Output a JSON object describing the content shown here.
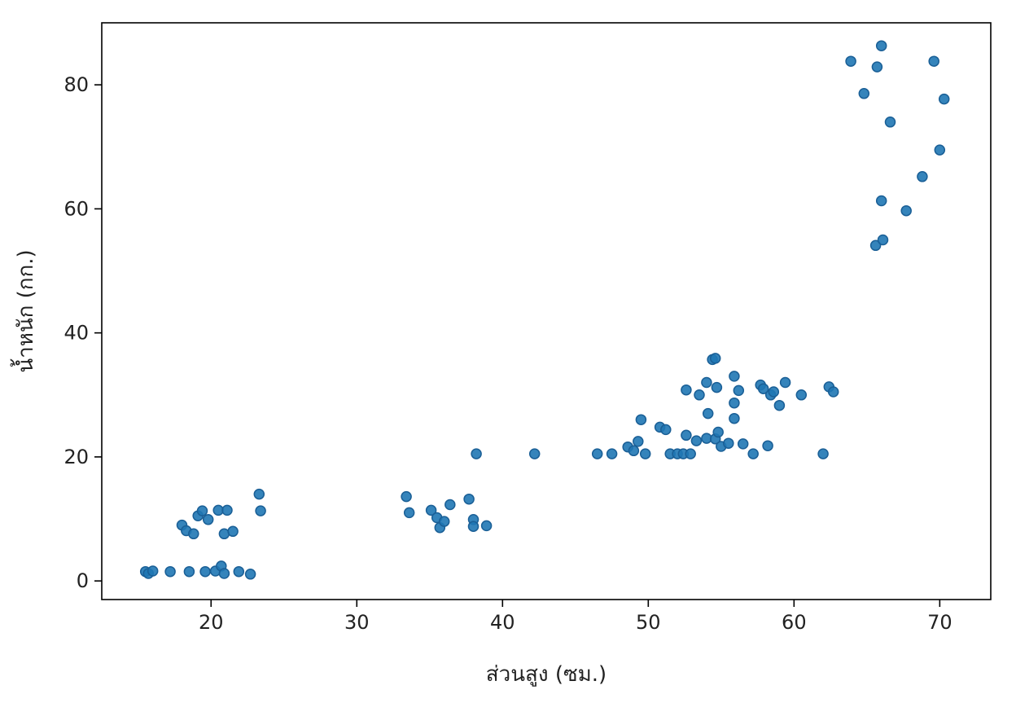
{
  "chart_data": {
    "type": "scatter",
    "title": "",
    "xlabel": "ส่วนสูง (ซม.)",
    "ylabel": "น้ำหนัก (กก.)",
    "xlim": [
      12.5,
      73.5
    ],
    "ylim": [
      -3,
      90
    ],
    "xticks": [
      20,
      30,
      40,
      50,
      60,
      70
    ],
    "yticks": [
      0,
      20,
      40,
      60,
      80
    ],
    "grid": false,
    "legend": "none",
    "marker_color": "#1f77b4",
    "series": [
      {
        "points": [
          {
            "x": 15.5,
            "y": 1.5
          },
          {
            "x": 15.7,
            "y": 1.2
          },
          {
            "x": 16.0,
            "y": 1.6
          },
          {
            "x": 17.2,
            "y": 1.5
          },
          {
            "x": 18.5,
            "y": 1.5
          },
          {
            "x": 19.6,
            "y": 1.5
          },
          {
            "x": 20.3,
            "y": 1.6
          },
          {
            "x": 20.7,
            "y": 2.4
          },
          {
            "x": 20.9,
            "y": 1.2
          },
          {
            "x": 21.9,
            "y": 1.5
          },
          {
            "x": 22.7,
            "y": 1.1
          },
          {
            "x": 18.0,
            "y": 9.0
          },
          {
            "x": 18.3,
            "y": 8.1
          },
          {
            "x": 18.8,
            "y": 7.6
          },
          {
            "x": 19.1,
            "y": 10.5
          },
          {
            "x": 19.4,
            "y": 11.3
          },
          {
            "x": 19.8,
            "y": 9.9
          },
          {
            "x": 20.5,
            "y": 11.4
          },
          {
            "x": 20.9,
            "y": 7.6
          },
          {
            "x": 21.1,
            "y": 11.4
          },
          {
            "x": 21.5,
            "y": 8.0
          },
          {
            "x": 23.3,
            "y": 14.0
          },
          {
            "x": 23.4,
            "y": 11.3
          },
          {
            "x": 33.4,
            "y": 13.6
          },
          {
            "x": 33.6,
            "y": 11.0
          },
          {
            "x": 35.1,
            "y": 11.4
          },
          {
            "x": 35.5,
            "y": 10.2
          },
          {
            "x": 35.7,
            "y": 8.6
          },
          {
            "x": 36.0,
            "y": 9.6
          },
          {
            "x": 36.4,
            "y": 12.3
          },
          {
            "x": 37.7,
            "y": 13.2
          },
          {
            "x": 38.0,
            "y": 9.9
          },
          {
            "x": 38.0,
            "y": 8.8
          },
          {
            "x": 38.9,
            "y": 8.9
          },
          {
            "x": 38.2,
            "y": 20.5
          },
          {
            "x": 42.2,
            "y": 20.5
          },
          {
            "x": 46.5,
            "y": 20.5
          },
          {
            "x": 47.5,
            "y": 20.5
          },
          {
            "x": 48.6,
            "y": 21.6
          },
          {
            "x": 49.0,
            "y": 21.0
          },
          {
            "x": 49.3,
            "y": 22.5
          },
          {
            "x": 49.5,
            "y": 26.0
          },
          {
            "x": 49.8,
            "y": 20.5
          },
          {
            "x": 50.8,
            "y": 24.8
          },
          {
            "x": 51.2,
            "y": 24.4
          },
          {
            "x": 51.5,
            "y": 20.5
          },
          {
            "x": 52.0,
            "y": 20.5
          },
          {
            "x": 52.4,
            "y": 20.5
          },
          {
            "x": 52.6,
            "y": 23.5
          },
          {
            "x": 52.6,
            "y": 30.8
          },
          {
            "x": 52.9,
            "y": 20.5
          },
          {
            "x": 53.3,
            "y": 22.6
          },
          {
            "x": 53.5,
            "y": 30.0
          },
          {
            "x": 54.0,
            "y": 23.0
          },
          {
            "x": 54.0,
            "y": 32.0
          },
          {
            "x": 54.1,
            "y": 27.0
          },
          {
            "x": 54.4,
            "y": 35.7
          },
          {
            "x": 54.6,
            "y": 35.9
          },
          {
            "x": 54.6,
            "y": 22.9
          },
          {
            "x": 54.7,
            "y": 31.2
          },
          {
            "x": 54.8,
            "y": 24.0
          },
          {
            "x": 55.0,
            "y": 21.7
          },
          {
            "x": 55.5,
            "y": 22.2
          },
          {
            "x": 55.9,
            "y": 33.0
          },
          {
            "x": 55.9,
            "y": 28.7
          },
          {
            "x": 55.9,
            "y": 26.2
          },
          {
            "x": 56.2,
            "y": 30.7
          },
          {
            "x": 56.5,
            "y": 22.1
          },
          {
            "x": 57.2,
            "y": 20.5
          },
          {
            "x": 57.7,
            "y": 31.6
          },
          {
            "x": 57.9,
            "y": 31.0
          },
          {
            "x": 58.2,
            "y": 21.8
          },
          {
            "x": 58.4,
            "y": 30.0
          },
          {
            "x": 58.6,
            "y": 30.5
          },
          {
            "x": 59.0,
            "y": 28.3
          },
          {
            "x": 59.4,
            "y": 32.0
          },
          {
            "x": 60.5,
            "y": 30.0
          },
          {
            "x": 62.0,
            "y": 20.5
          },
          {
            "x": 62.4,
            "y": 31.3
          },
          {
            "x": 62.7,
            "y": 30.5
          },
          {
            "x": 63.9,
            "y": 83.8
          },
          {
            "x": 64.8,
            "y": 78.6
          },
          {
            "x": 65.6,
            "y": 54.1
          },
          {
            "x": 65.7,
            "y": 82.9
          },
          {
            "x": 66.0,
            "y": 86.3
          },
          {
            "x": 66.0,
            "y": 61.3
          },
          {
            "x": 66.1,
            "y": 55.0
          },
          {
            "x": 66.6,
            "y": 74.0
          },
          {
            "x": 67.7,
            "y": 59.7
          },
          {
            "x": 68.8,
            "y": 65.2
          },
          {
            "x": 69.6,
            "y": 83.8
          },
          {
            "x": 70.0,
            "y": 69.5
          },
          {
            "x": 70.3,
            "y": 77.7
          }
        ]
      }
    ]
  }
}
